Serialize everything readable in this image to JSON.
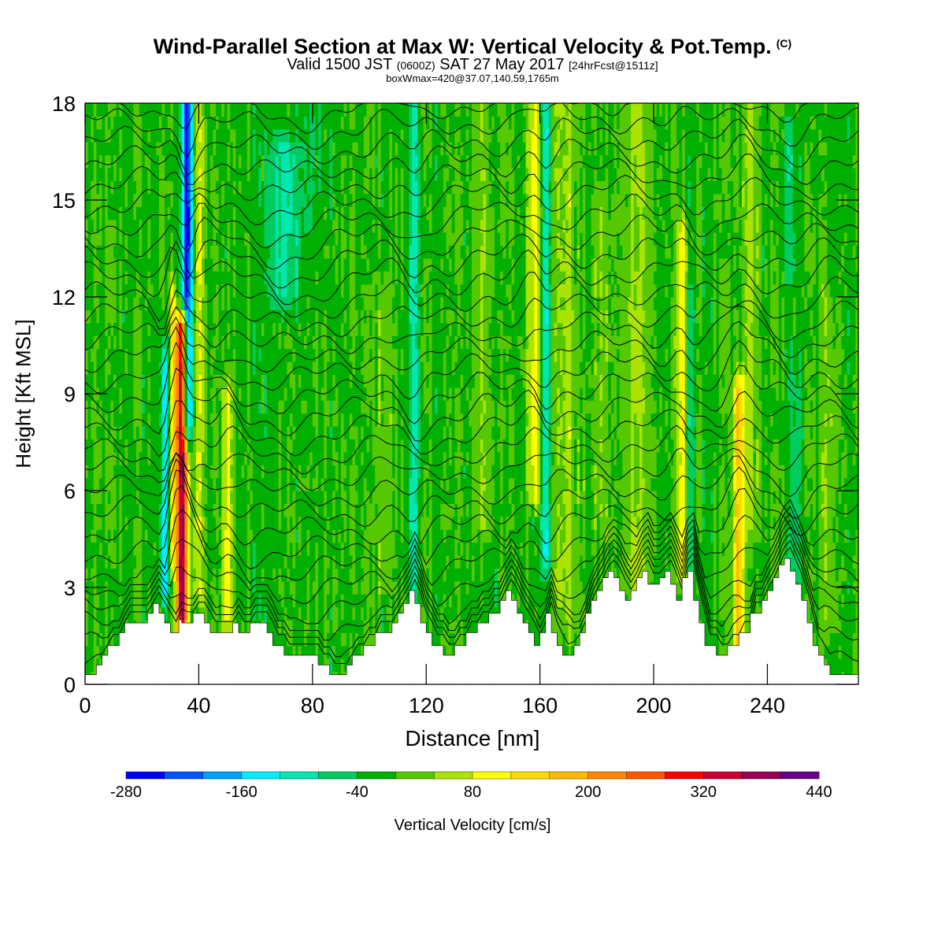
{
  "title": {
    "main": "Wind-Parallel Section at Max W: Vertical Velocity & Pot.Temp.",
    "copyright": "(C)",
    "valid_prefix": "Valid 1500 JST",
    "valid_utc": "(0600Z)",
    "valid_date": "SAT 27 May 2017",
    "forecast": "[24hrFcst@1511z]",
    "boxinfo": "boxWmax=420@37.07,140.59,1765m"
  },
  "colors": {
    "levels": [
      "#0000ff",
      "#0055ff",
      "#00a0ff",
      "#00eeff",
      "#00e8b0",
      "#00cc60",
      "#00b000",
      "#55c800",
      "#aae400",
      "#ffff00",
      "#ffdd00",
      "#ffbb00",
      "#ff8800",
      "#ff5500",
      "#ff0000",
      "#cc0033",
      "#990055",
      "#660088"
    ],
    "contour": "#000000",
    "terrain": "#ffffff"
  },
  "chart_data": {
    "type": "heatmap",
    "xlabel": "Distance [nm]",
    "ylabel": "Height [Kft MSL]",
    "xlim": [
      0,
      272
    ],
    "ylim": [
      0,
      18
    ],
    "xticks": [
      "0",
      "40",
      "80",
      "120",
      "160",
      "200",
      "240"
    ],
    "xtick_values": [
      0,
      40,
      80,
      120,
      160,
      200,
      240
    ],
    "yticks": [
      "0",
      "3",
      "6",
      "9",
      "12",
      "15",
      "18"
    ],
    "ytick_values": [
      0,
      3,
      6,
      9,
      12,
      15,
      18
    ],
    "colorbar": {
      "label": "Vertical Velocity [cm/s]",
      "min": -280,
      "max": 440,
      "step": 40,
      "tick_labels": [
        "-280",
        "-160",
        "-40",
        "80",
        "200",
        "320",
        "440"
      ],
      "tick_values": [
        -280,
        -160,
        -40,
        80,
        200,
        320,
        440
      ]
    },
    "max_w_cms": 420,
    "terrain_kft": [
      [
        0,
        0.3
      ],
      [
        2,
        0.3
      ],
      [
        4,
        0.6
      ],
      [
        6,
        0.9
      ],
      [
        8,
        1.2
      ],
      [
        10,
        1.2
      ],
      [
        12,
        1.6
      ],
      [
        14,
        1.9
      ],
      [
        20,
        1.9
      ],
      [
        22,
        2.2
      ],
      [
        24,
        2.5
      ],
      [
        26,
        2.2
      ],
      [
        28,
        1.9
      ],
      [
        30,
        1.6
      ],
      [
        32,
        1.6
      ],
      [
        33,
        2.0
      ],
      [
        34,
        1.9
      ],
      [
        36,
        1.9
      ],
      [
        38,
        2.2
      ],
      [
        40,
        2.2
      ],
      [
        42,
        1.9
      ],
      [
        44,
        1.6
      ],
      [
        50,
        1.6
      ],
      [
        52,
        1.9
      ],
      [
        54,
        1.6
      ],
      [
        56,
        1.6
      ],
      [
        58,
        1.9
      ],
      [
        62,
        1.9
      ],
      [
        64,
        1.6
      ],
      [
        66,
        1.2
      ],
      [
        70,
        0.9
      ],
      [
        80,
        0.9
      ],
      [
        82,
        0.6
      ],
      [
        86,
        0.3
      ],
      [
        90,
        0.3
      ],
      [
        92,
        0.6
      ],
      [
        94,
        0.9
      ],
      [
        98,
        1.2
      ],
      [
        102,
        1.6
      ],
      [
        106,
        1.6
      ],
      [
        108,
        1.9
      ],
      [
        110,
        2.2
      ],
      [
        112,
        2.5
      ],
      [
        114,
        2.9
      ],
      [
        116,
        2.5
      ],
      [
        118,
        1.9
      ],
      [
        120,
        1.6
      ],
      [
        122,
        1.2
      ],
      [
        126,
        0.9
      ],
      [
        130,
        1.2
      ],
      [
        134,
        1.6
      ],
      [
        138,
        1.9
      ],
      [
        142,
        2.2
      ],
      [
        146,
        2.6
      ],
      [
        148,
        2.9
      ],
      [
        150,
        2.6
      ],
      [
        152,
        2.2
      ],
      [
        154,
        1.9
      ],
      [
        156,
        1.6
      ],
      [
        158,
        1.2
      ],
      [
        160,
        1.6
      ],
      [
        162,
        2.2
      ],
      [
        164,
        1.6
      ],
      [
        166,
        1.2
      ],
      [
        168,
        0.9
      ],
      [
        170,
        0.9
      ],
      [
        172,
        1.2
      ],
      [
        174,
        1.6
      ],
      [
        176,
        2.2
      ],
      [
        178,
        2.6
      ],
      [
        180,
        2.9
      ],
      [
        182,
        3.3
      ],
      [
        184,
        3.5
      ],
      [
        186,
        3.3
      ],
      [
        188,
        2.9
      ],
      [
        190,
        2.6
      ],
      [
        192,
        2.9
      ],
      [
        194,
        3.3
      ],
      [
        196,
        3.5
      ],
      [
        198,
        3.1
      ],
      [
        200,
        3.1
      ],
      [
        202,
        3.3
      ],
      [
        204,
        3.5
      ],
      [
        206,
        3.1
      ],
      [
        208,
        2.6
      ],
      [
        210,
        3.3
      ],
      [
        212,
        3.5
      ],
      [
        214,
        2.6
      ],
      [
        216,
        1.9
      ],
      [
        218,
        1.2
      ],
      [
        222,
        0.9
      ],
      [
        226,
        1.2
      ],
      [
        230,
        1.6
      ],
      [
        234,
        2.2
      ],
      [
        238,
        2.6
      ],
      [
        240,
        2.9
      ],
      [
        242,
        3.3
      ],
      [
        244,
        3.7
      ],
      [
        246,
        3.9
      ],
      [
        248,
        3.5
      ],
      [
        250,
        3.1
      ],
      [
        252,
        2.6
      ],
      [
        254,
        1.9
      ],
      [
        256,
        1.2
      ],
      [
        258,
        0.9
      ],
      [
        260,
        0.6
      ],
      [
        262,
        0.3
      ],
      [
        272,
        0.3
      ]
    ],
    "w_features": [
      {
        "x": 34,
        "w": 400,
        "width_nm": 2.0,
        "z_min": 2.0,
        "z_max": 11.0
      },
      {
        "x": 36,
        "w": -260,
        "width_nm": 1.8,
        "z_min": 8.0,
        "z_max": 18.0
      },
      {
        "x": 28,
        "w": -140,
        "width_nm": 1.5,
        "z_min": 3.0,
        "z_max": 10.0
      },
      {
        "x": 31,
        "w": 120,
        "width_nm": 1.2,
        "z_min": 4.0,
        "z_max": 12.0
      },
      {
        "x": 40,
        "w": 100,
        "width_nm": 1.5,
        "z_min": 3.0,
        "z_max": 18.0
      },
      {
        "x": 50,
        "w": 110,
        "width_nm": 1.8,
        "z_min": 2.0,
        "z_max": 9.0
      },
      {
        "x": 116,
        "w": -90,
        "width_nm": 1.8,
        "z_min": 3.0,
        "z_max": 18.0
      },
      {
        "x": 158,
        "w": 110,
        "width_nm": 2.5,
        "z_min": 6.0,
        "z_max": 18.0
      },
      {
        "x": 162,
        "w": -100,
        "width_nm": 1.5,
        "z_min": 4.0,
        "z_max": 18.0
      },
      {
        "x": 169,
        "w": 60,
        "width_nm": 4.0,
        "z_min": 2.0,
        "z_max": 18.0
      },
      {
        "x": 194,
        "w": 70,
        "width_nm": 4.0,
        "z_min": 3.0,
        "z_max": 18.0
      },
      {
        "x": 210,
        "w": 110,
        "width_nm": 1.8,
        "z_min": 3.5,
        "z_max": 14.0
      },
      {
        "x": 213,
        "w": -60,
        "width_nm": 1.5,
        "z_min": 3.5,
        "z_max": 12.0
      },
      {
        "x": 230,
        "w": 170,
        "width_nm": 1.8,
        "z_min": 1.5,
        "z_max": 9.0
      },
      {
        "x": 234,
        "w": 60,
        "width_nm": 2.5,
        "z_min": 5.0,
        "z_max": 18.0
      },
      {
        "x": 250,
        "w": -60,
        "width_nm": 2.0,
        "z_min": 3.0,
        "z_max": 10.0
      },
      {
        "x": 262,
        "w": 50,
        "width_nm": 3.0,
        "z_min": 2.0,
        "z_max": 12.0
      },
      {
        "x": 70,
        "w": -90,
        "width_nm": 5.0,
        "z_min": 12.0,
        "z_max": 16.5
      },
      {
        "x": 80,
        "w": -30,
        "width_nm": 6.0,
        "z_min": 14.0,
        "z_max": 18.0
      },
      {
        "x": 248,
        "w": -50,
        "width_nm": 3.0,
        "z_min": 13.0,
        "z_max": 17.0
      },
      {
        "x": 105,
        "w": 40,
        "width_nm": 3.0,
        "z_min": 3.0,
        "z_max": 12.0
      },
      {
        "x": 140,
        "w": 50,
        "width_nm": 3.0,
        "z_min": 5.0,
        "z_max": 18.0
      },
      {
        "x": 182,
        "w": 40,
        "width_nm": 3.0,
        "z_min": 5.0,
        "z_max": 15.0
      }
    ]
  }
}
